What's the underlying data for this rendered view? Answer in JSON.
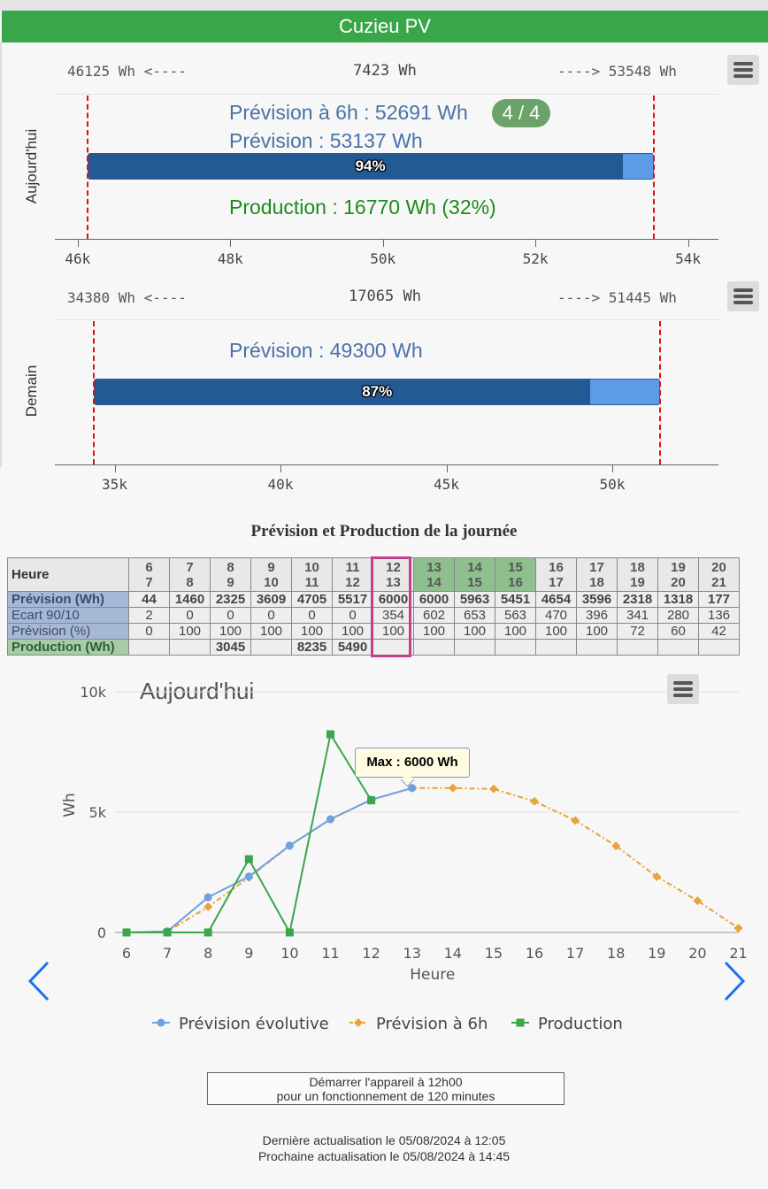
{
  "header": {
    "title": "Cuzieu PV"
  },
  "today_gauge": {
    "side_label": "Aujourd'hui",
    "left_text": "46125 Wh <----",
    "center_text": "7423 Wh",
    "right_text": "----> 53548 Wh",
    "forecast_6h_text": "Prévision à 6h : 52691 Wh",
    "badge": "4 / 4",
    "forecast_text": "Prévision : 53137 Wh",
    "bar_percent_label": "94%",
    "bar_fill_fraction": 0.94,
    "production_text": "Production : 16770 Wh (32%)",
    "axis_min": 45700,
    "axis_max": 54400,
    "min_value": 46125,
    "max_value": 53548,
    "forecast_value": 53137,
    "ticks": [
      "46k",
      "48k",
      "50k",
      "52k",
      "54k"
    ],
    "tick_values": [
      46000,
      48000,
      50000,
      52000,
      54000
    ]
  },
  "tomorrow_gauge": {
    "side_label": "Demain",
    "left_text": "34380 Wh <----",
    "center_text": "17065 Wh",
    "right_text": "----> 51445 Wh",
    "forecast_text": "Prévision : 49300 Wh",
    "bar_percent_label": "87%",
    "bar_fill_fraction": 0.87,
    "axis_min": 33200,
    "axis_max": 53200,
    "min_value": 34380,
    "max_value": 51445,
    "forecast_value": 49300,
    "ticks": [
      "35k",
      "40k",
      "45k",
      "50k"
    ],
    "tick_values": [
      35000,
      40000,
      45000,
      50000
    ]
  },
  "table": {
    "title": "Prévision et Production de la journée",
    "header_label": "Heure",
    "hours": [
      [
        "6",
        "7"
      ],
      [
        "7",
        "8"
      ],
      [
        "8",
        "9"
      ],
      [
        "9",
        "10"
      ],
      [
        "10",
        "11"
      ],
      [
        "11",
        "12"
      ],
      [
        "12",
        "13"
      ],
      [
        "13",
        "14"
      ],
      [
        "14",
        "15"
      ],
      [
        "15",
        "16"
      ],
      [
        "16",
        "17"
      ],
      [
        "17",
        "18"
      ],
      [
        "18",
        "19"
      ],
      [
        "19",
        "20"
      ],
      [
        "20",
        "21"
      ]
    ],
    "green_hours": [
      7,
      8,
      9
    ],
    "rows": [
      {
        "label": "Prévision (Wh)",
        "style": "blue",
        "bold": true,
        "values": [
          "44",
          "1460",
          "2325",
          "3609",
          "4705",
          "5517",
          "6000",
          "6000",
          "5963",
          "5451",
          "4654",
          "3596",
          "2318",
          "1318",
          "177"
        ]
      },
      {
        "label": "Ecart 90/10",
        "style": "blue",
        "bold": false,
        "values": [
          "2",
          "0",
          "0",
          "0",
          "0",
          "0",
          "354",
          "602",
          "653",
          "563",
          "470",
          "396",
          "341",
          "280",
          "136"
        ]
      },
      {
        "label": "Prévision (%)",
        "style": "blue",
        "bold": false,
        "values": [
          "0",
          "100",
          "100",
          "100",
          "100",
          "100",
          "100",
          "100",
          "100",
          "100",
          "100",
          "100",
          "72",
          "60",
          "42"
        ]
      },
      {
        "label": "Production (Wh)",
        "style": "green",
        "bold": true,
        "values": [
          "",
          "",
          "3045",
          "",
          "8235",
          "5490",
          "",
          "",
          "",
          "",
          "",
          "",
          "",
          "",
          ""
        ]
      }
    ]
  },
  "chart_data": {
    "type": "line",
    "title": "Aujourd'hui",
    "xlabel": "Heure",
    "ylabel": "Wh",
    "ylim": [
      0,
      10000
    ],
    "yticks": [
      "0",
      "5k",
      "10k"
    ],
    "ytick_values": [
      0,
      5000,
      10000
    ],
    "x": [
      6,
      7,
      8,
      9,
      10,
      11,
      12,
      13,
      14,
      15,
      16,
      17,
      18,
      19,
      20,
      21
    ],
    "xticks": [
      "6",
      "7",
      "8",
      "9",
      "10",
      "11",
      "12",
      "13",
      "14",
      "15",
      "16",
      "17",
      "18",
      "19",
      "20",
      "21"
    ],
    "series": [
      {
        "name": "Prévision évolutive",
        "color": "#6fa0e0",
        "marker": "circle",
        "points": [
          [
            6,
            0
          ],
          [
            7,
            44
          ],
          [
            8,
            1460
          ],
          [
            9,
            2325
          ],
          [
            10,
            3609
          ],
          [
            11,
            4705
          ],
          [
            12,
            5517
          ],
          [
            13,
            6000
          ]
        ]
      },
      {
        "name": "Prévision à 6h",
        "color": "#e8a33a",
        "marker": "diamond",
        "points": [
          [
            6,
            0
          ],
          [
            7,
            40
          ],
          [
            8,
            1060
          ],
          [
            9,
            2280
          ],
          [
            10,
            3609
          ],
          [
            11,
            4705
          ],
          [
            12,
            5517
          ],
          [
            13,
            6000
          ],
          [
            14,
            6000
          ],
          [
            15,
            5963
          ],
          [
            16,
            5451
          ],
          [
            17,
            4654
          ],
          [
            18,
            3596
          ],
          [
            19,
            2318
          ],
          [
            20,
            1318
          ],
          [
            21,
            177
          ]
        ]
      },
      {
        "name": "Production",
        "color": "#3aa64a",
        "marker": "square",
        "points": [
          [
            6,
            0
          ],
          [
            7,
            0
          ],
          [
            8,
            0
          ],
          [
            9,
            3045
          ],
          [
            10,
            0
          ],
          [
            11,
            8235
          ],
          [
            12,
            5490
          ]
        ]
      }
    ],
    "tooltip": "Max : 6000 Wh",
    "legend_position": "bottom"
  },
  "advice": {
    "line1": "Démarrer l'appareil à 12h00",
    "line2": "pour un fonctionnement de 120 minutes"
  },
  "footer": {
    "last_update": "Dernière actualisation le 05/08/2024 à 12:05",
    "next_update": "Prochaine actualisation le 05/08/2024 à 14:45"
  },
  "colors": {
    "accent": "#3aa64a",
    "bar_dark": "#235a94",
    "bar_light": "#5e9be6",
    "minmax_line": "#e01010",
    "highlight": "#c0428a"
  }
}
